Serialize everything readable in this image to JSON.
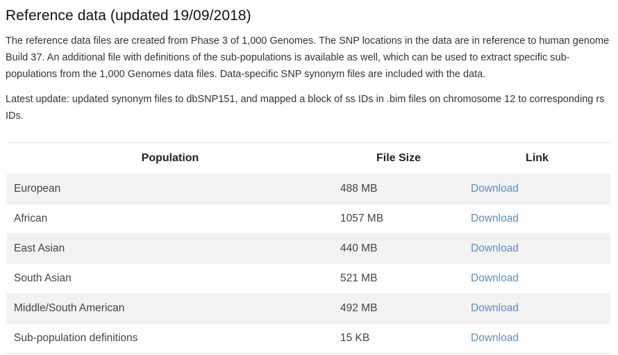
{
  "section": {
    "title": "Reference data (updated 19/09/2018)",
    "paragraph1": "The reference data files are created from Phase 3 of 1,000 Genomes. The SNP locations in the data are in reference to human genome Build 37. An additional file with definitions of the sub-populations is available as well, which can be used to extract specific sub-populations from the 1,000 Genomes data files. Data-specific SNP synonym files are included with the data.",
    "paragraph2": "Latest update: updated synonym files to dbSNP151, and mapped a block of ss IDs in .bim files on chromosome 12 to corresponding rs IDs."
  },
  "table": {
    "headers": {
      "population": "Population",
      "file_size": "File Size",
      "link": "Link"
    },
    "rows": [
      {
        "population": "European",
        "file_size": "488 MB",
        "link": "Download"
      },
      {
        "population": "African",
        "file_size": "1057 MB",
        "link": "Download"
      },
      {
        "population": "East Asian",
        "file_size": "440 MB",
        "link": "Download"
      },
      {
        "population": "South Asian",
        "file_size": "521 MB",
        "link": "Download"
      },
      {
        "population": "Middle/South American",
        "file_size": "492 MB",
        "link": "Download"
      },
      {
        "population": "Sub-population definitions",
        "file_size": "15 KB",
        "link": "Download"
      }
    ]
  },
  "colors": {
    "link": "#5b8ec4",
    "row_stripe": "#f2f2f2",
    "text": "#333333"
  }
}
